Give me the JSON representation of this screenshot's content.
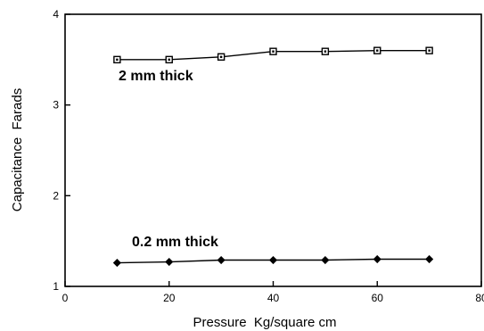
{
  "chart_data": {
    "type": "line",
    "xlabel": "Pressure  Kg/square cm",
    "ylabel": "Capacitance  Farads",
    "xlim": [
      0,
      80
    ],
    "ylim": [
      1,
      4
    ],
    "xticks": [
      0,
      20,
      40,
      60,
      80
    ],
    "xtick_labels": [
      "0",
      "20",
      "40",
      "60",
      "80"
    ],
    "yticks": [
      1,
      2,
      3,
      4
    ],
    "ytick_labels": [
      "1",
      "2",
      "3",
      "4"
    ],
    "grid": false,
    "legend": "none",
    "series": [
      {
        "name": "2 mm thick",
        "marker": "square",
        "x": [
          10,
          20,
          30,
          40,
          50,
          60,
          70
        ],
        "y": [
          3.5,
          3.5,
          3.53,
          3.59,
          3.59,
          3.6,
          3.6
        ]
      },
      {
        "name": "0.2 mm thick",
        "marker": "diamond",
        "x": [
          10,
          20,
          30,
          40,
          50,
          60,
          70
        ],
        "y": [
          1.26,
          1.27,
          1.29,
          1.29,
          1.29,
          1.3,
          1.3
        ]
      }
    ]
  }
}
